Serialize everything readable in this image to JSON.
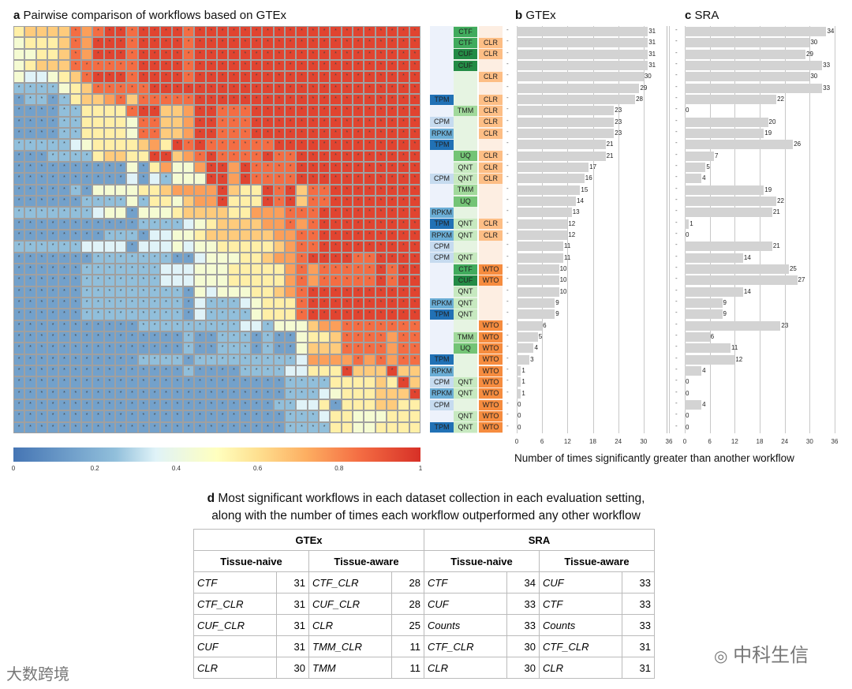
{
  "panel_a": {
    "letter": "a",
    "title": "Pairwise comparison of workflows based on GTEx"
  },
  "panel_b": {
    "letter": "b",
    "title": "GTEx"
  },
  "panel_c": {
    "letter": "c",
    "title": "SRA"
  },
  "chart_data": [
    {
      "type": "heatmap",
      "title": "Pairwise comparison of workflows based on GTEx",
      "value_scale": "digit d => (d+0.5)/10",
      "matrix": [
        "566668789989999899999999999999999999",
        "455568799989999899999999999999999999",
        "445568799989999899999999999999999999",
        "456668888889999899999999999999999999",
        "433456899989999899999999999999999999",
        "222245688888999999999999999999999999",
        "122125667868888899999999999999999999",
        "111122555589966799888999999999999999",
        "111122555548866799888999999999999999",
        "111122555548866799888999999999999999",
        "222223455556759898888889999999999999",
        "111222256655996789888898899999999999",
        "111111111141574479979888899999999999",
        "111111111131324449979888899999999999",
        "111112144445567777965598968899999999",
        "111111222242554677955598968899999999",
        "222222234414445666655777888999999999",
        "111111111112222345666677878999999999",
        "111111112221334456666667788999999999",
        "222222333313334344555556788999999999",
        "111111122222221134445567789999889999",
        "111111222222233344455555787888889899",
        "111111222222233344455555787888889899",
        "111111222222222143444556789999999999",
        "111111222222222132223455589999999999",
        "111111222222222132222455589999999999",
        "111111111112222222223324446778888888",
        "111111111111111211222121145568888788",
        "111111111111111211222121146668888788",
        "111111111112222122222222237777878788",
        "111111111111111211112222335559666966",
        "111111111111111111111111222255556596",
        "111111111111111111111111222345556669",
        "111111111111111111111112233515556655",
        "111111111111111111111111222355444555",
        "111111111111111111111111222255445555"
      ],
      "colorbar": {
        "ticks": [
          "0",
          "0.2",
          "0.4",
          "0.6",
          "0.8",
          "1"
        ],
        "range": [
          0,
          1
        ]
      }
    },
    {
      "type": "bar",
      "title": "GTEx",
      "values": [
        31,
        31,
        31,
        31,
        30,
        29,
        28,
        23,
        23,
        23,
        21,
        21,
        17,
        16,
        15,
        14,
        13,
        12,
        12,
        11,
        11,
        10,
        10,
        10,
        9,
        9,
        6,
        5,
        4,
        3,
        1,
        1,
        1,
        0,
        0,
        0
      ],
      "xlim": [
        0,
        36
      ],
      "ticks": [
        "0",
        "6",
        "12",
        "18",
        "24",
        "30",
        "36"
      ]
    },
    {
      "type": "bar",
      "title": "SRA",
      "values": [
        34,
        30,
        29,
        33,
        30,
        33,
        22,
        0,
        20,
        19,
        26,
        7,
        5,
        4,
        19,
        22,
        21,
        1,
        0,
        21,
        14,
        25,
        27,
        14,
        9,
        9,
        23,
        6,
        11,
        12,
        4,
        0,
        0,
        4,
        0,
        0
      ],
      "xlim": [
        0,
        36
      ],
      "ticks": [
        "0",
        "6",
        "12",
        "18",
        "24",
        "30",
        "36"
      ]
    }
  ],
  "xlabel": "Number of times significantly greater than another workflow",
  "workflows": [
    [
      "",
      "CTF",
      ""
    ],
    [
      "",
      "CTF",
      "CLR"
    ],
    [
      "",
      "CUF",
      "CLR"
    ],
    [
      "",
      "CUF",
      ""
    ],
    [
      "",
      "",
      "CLR"
    ],
    [
      "",
      "",
      ""
    ],
    [
      "TPM",
      "",
      "CLR"
    ],
    [
      "",
      "TMM",
      "CLR"
    ],
    [
      "CPM",
      "",
      "CLR"
    ],
    [
      "RPKM",
      "",
      "CLR"
    ],
    [
      "TPM",
      "",
      ""
    ],
    [
      "",
      "UQ",
      "CLR"
    ],
    [
      "",
      "QNT",
      "CLR"
    ],
    [
      "CPM",
      "QNT",
      "CLR"
    ],
    [
      "",
      "TMM",
      ""
    ],
    [
      "",
      "UQ",
      ""
    ],
    [
      "RPKM",
      "",
      ""
    ],
    [
      "TPM",
      "QNT",
      "CLR"
    ],
    [
      "RPKM",
      "QNT",
      "CLR"
    ],
    [
      "CPM",
      "",
      ""
    ],
    [
      "CPM",
      "QNT",
      ""
    ],
    [
      "",
      "CTF",
      "WTO"
    ],
    [
      "",
      "CUF",
      "WTO"
    ],
    [
      "",
      "QNT",
      ""
    ],
    [
      "RPKM",
      "QNT",
      ""
    ],
    [
      "TPM",
      "QNT",
      ""
    ],
    [
      "",
      "",
      "WTO"
    ],
    [
      "",
      "TMM",
      "WTO"
    ],
    [
      "",
      "UQ",
      "WTO"
    ],
    [
      "TPM",
      "",
      "WTO"
    ],
    [
      "RPKM",
      "",
      "WTO"
    ],
    [
      "CPM",
      "QNT",
      "WTO"
    ],
    [
      "RPKM",
      "QNT",
      "WTO"
    ],
    [
      "CPM",
      "",
      "WTO"
    ],
    [
      "",
      "QNT",
      "WTO"
    ],
    [
      "TPM",
      "QNT",
      "WTO"
    ]
  ],
  "chip_colors": {
    "TPM": "#2171b5",
    "RPKM": "#6baed6",
    "CPM": "#c6dbef",
    "CTF": "#41ab5d",
    "CUF": "#238b45",
    "TMM": "#a1d99b",
    "UQ": "#74c476",
    "QNT": "#c7e9c0",
    "CLR": "#fdbe85",
    "WTO": "#f68c3f"
  },
  "panel_d": {
    "letter": "d",
    "title_line1": "Most significant workflows in each dataset collection in each evaluation setting,",
    "title_line2": "along with the number of times each workflow outperformed any other workflow",
    "groups": [
      "GTEx",
      "SRA"
    ],
    "subheaders": [
      "Tissue-naive",
      "Tissue-aware",
      "Tissue-naive",
      "Tissue-aware"
    ],
    "rows": [
      [
        [
          "CTF",
          "31"
        ],
        [
          "CTF_CLR",
          "28"
        ],
        [
          "CTF",
          "34"
        ],
        [
          "CUF",
          "33"
        ]
      ],
      [
        [
          "CTF_CLR",
          "31"
        ],
        [
          "CUF_CLR",
          "28"
        ],
        [
          "CUF",
          "33"
        ],
        [
          "CTF",
          "33"
        ]
      ],
      [
        [
          "CUF_CLR",
          "31"
        ],
        [
          "CLR",
          "25"
        ],
        [
          "Counts",
          "33"
        ],
        [
          "Counts",
          "33"
        ]
      ],
      [
        [
          "CUF",
          "31"
        ],
        [
          "TMM_CLR",
          "11"
        ],
        [
          "CTF_CLR",
          "30"
        ],
        [
          "CTF_CLR",
          "31"
        ]
      ],
      [
        [
          "CLR",
          "30"
        ],
        [
          "TMM",
          "11"
        ],
        [
          "CLR",
          "30"
        ],
        [
          "CLR",
          "31"
        ]
      ]
    ]
  },
  "watermarks": {
    "left": "大数跨境",
    "right": "中科生信"
  }
}
